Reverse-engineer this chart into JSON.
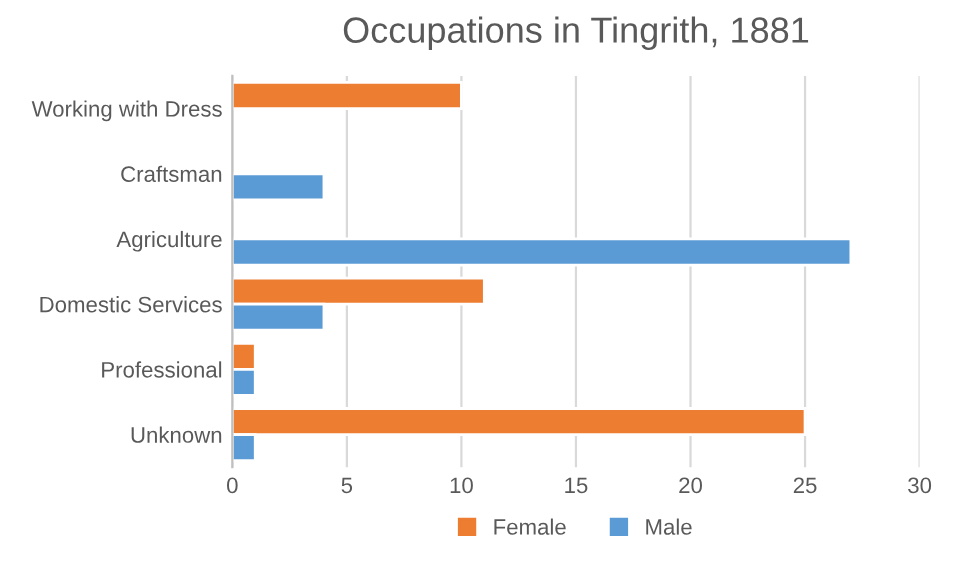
{
  "chart_data": {
    "type": "bar",
    "orientation": "horizontal",
    "title": "Occupations in Tingrith, 1881",
    "categories": [
      "Working with Dress",
      "Craftsman",
      "Agriculture",
      "Domestic Services",
      "Professional",
      "Unknown"
    ],
    "series": [
      {
        "name": "Female",
        "color": "#ed7d31",
        "values": [
          10,
          null,
          null,
          11,
          1,
          25
        ]
      },
      {
        "name": "Male",
        "color": "#5b9bd5",
        "values": [
          null,
          4,
          27,
          4,
          1,
          1
        ]
      }
    ],
    "xlim": [
      0,
      30
    ],
    "xticks": [
      0,
      5,
      10,
      15,
      20,
      25,
      30
    ],
    "grid": "x",
    "legend": "bottom"
  }
}
